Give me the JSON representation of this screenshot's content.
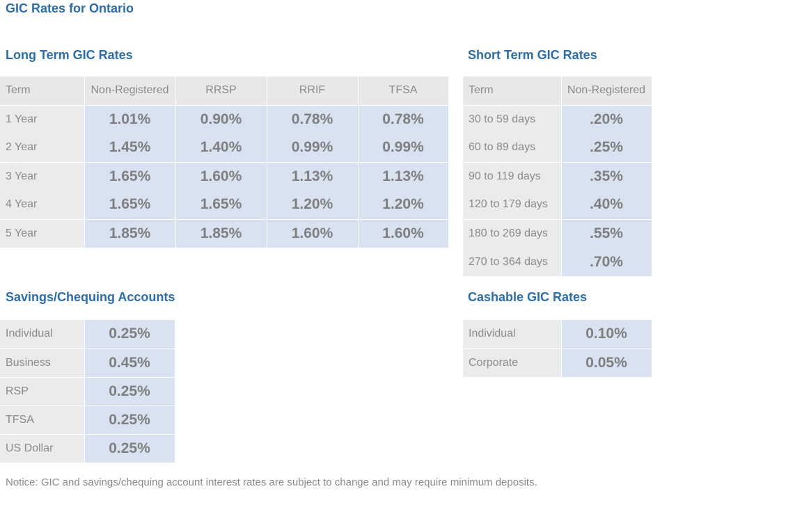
{
  "page": {
    "title": "GIC Rates for Ontario",
    "notice": "Notice: GIC and savings/chequing account interest rates are subject to change and may require minimum deposits."
  },
  "colors": {
    "title_blue": "#2a6db0",
    "header_gray": "#e8e8e8",
    "value_blue": "#d8e2f1",
    "text_gray": "#8a8a8a"
  },
  "long_term": {
    "title": "Long Term GIC Rates",
    "headers": [
      "Term",
      "Non-Registered",
      "RRSP",
      "RRIF",
      "TFSA"
    ],
    "rows": [
      {
        "term": "1 Year",
        "values": [
          "1.01%",
          "0.90%",
          "0.78%",
          "0.78%"
        ]
      },
      {
        "term": "2 Year",
        "values": [
          "1.45%",
          "1.40%",
          "0.99%",
          "0.99%"
        ]
      },
      {
        "term": "3 Year",
        "values": [
          "1.65%",
          "1.60%",
          "1.13%",
          "1.13%"
        ]
      },
      {
        "term": "4 Year",
        "values": [
          "1.65%",
          "1.65%",
          "1.20%",
          "1.20%"
        ]
      },
      {
        "term": "5 Year",
        "values": [
          "1.85%",
          "1.85%",
          "1.60%",
          "1.60%"
        ]
      }
    ]
  },
  "short_term": {
    "title": "Short Term GIC Rates",
    "headers": [
      "Term",
      "Non-Registered"
    ],
    "rows": [
      {
        "term": "30 to 59 days",
        "value": ".20%"
      },
      {
        "term": "60 to 89 days",
        "value": ".25%"
      },
      {
        "term": "90 to 119 days",
        "value": ".35%"
      },
      {
        "term": "120 to 179 days",
        "value": ".40%"
      },
      {
        "term": "180 to 269 days",
        "value": ".55%"
      },
      {
        "term": "270 to 364 days",
        "value": ".70%"
      }
    ]
  },
  "savings": {
    "title": "Savings/Chequing Accounts",
    "rows": [
      {
        "label": "Individual",
        "value": "0.25%"
      },
      {
        "label": "Business",
        "value": "0.45%"
      },
      {
        "label": "RSP",
        "value": "0.25%"
      },
      {
        "label": "TFSA",
        "value": "0.25%"
      },
      {
        "label": "US Dollar",
        "value": "0.25%"
      }
    ]
  },
  "cashable": {
    "title": "Cashable GIC Rates",
    "rows": [
      {
        "label": "Individual",
        "value": "0.10%"
      },
      {
        "label": "Corporate",
        "value": "0.05%"
      }
    ]
  }
}
